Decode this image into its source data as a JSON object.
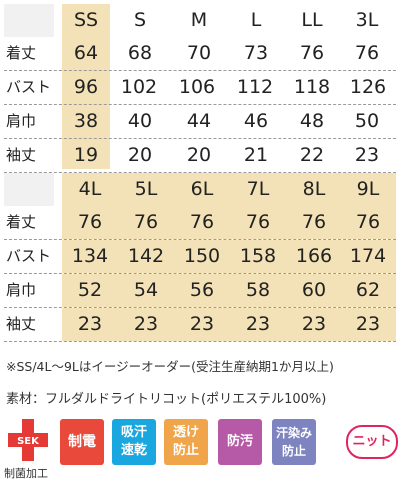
{
  "table1": {
    "sizes": [
      "SS",
      "S",
      "M",
      "L",
      "LL",
      "3L"
    ],
    "rows": [
      {
        "label": "着丈",
        "values": [
          "64",
          "68",
          "70",
          "73",
          "76",
          "76"
        ]
      },
      {
        "label": "バスト",
        "values": [
          "96",
          "102",
          "106",
          "112",
          "118",
          "126"
        ]
      },
      {
        "label": "肩巾",
        "values": [
          "38",
          "40",
          "44",
          "46",
          "48",
          "50"
        ]
      },
      {
        "label": "袖丈",
        "values": [
          "19",
          "20",
          "20",
          "21",
          "22",
          "23"
        ]
      }
    ]
  },
  "table2": {
    "sizes": [
      "4L",
      "5L",
      "6L",
      "7L",
      "8L",
      "9L"
    ],
    "rows": [
      {
        "label": "着丈",
        "values": [
          "76",
          "76",
          "76",
          "76",
          "76",
          "76"
        ]
      },
      {
        "label": "バスト",
        "values": [
          "134",
          "142",
          "150",
          "158",
          "166",
          "174"
        ]
      },
      {
        "label": "肩巾",
        "values": [
          "52",
          "54",
          "56",
          "58",
          "60",
          "62"
        ]
      },
      {
        "label": "袖丈",
        "values": [
          "23",
          "23",
          "23",
          "23",
          "23",
          "23"
        ]
      }
    ]
  },
  "note": "※SS/4L～9Lはイージーオーダー(受注生産納期1か月以上)",
  "material": "素材：フルダルドライトリコット(ポリエステル100%)",
  "badges": {
    "sek_logo": "SEK",
    "sek_caption": "制菌加工",
    "antistatic": "制電",
    "absorb_line1": "吸汗",
    "absorb_line2": "速乾",
    "seethru_line1": "透け",
    "seethru_line2": "防止",
    "stainproof": "防汚",
    "sweat_line1": "汗染み",
    "sweat_line2": "防止",
    "knit": "ニット"
  },
  "colors": {
    "highlight": "#f3e2b7",
    "antistatic": "#e8493a",
    "absorb": "#1aa7e0",
    "seethru": "#f0a54a",
    "stainproof": "#b65aa8",
    "sweat": "#7e84bf",
    "knit": "#e0245e"
  }
}
